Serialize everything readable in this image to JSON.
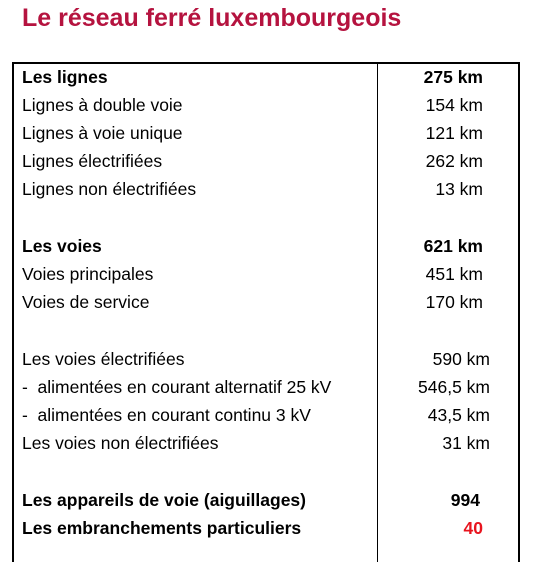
{
  "title": "Le réseau ferré luxembourgeois",
  "table": {
    "rows": [
      [
        "Les lignes",
        "275 km"
      ],
      [
        "Lignes à double voie",
        "154 km"
      ],
      [
        "Lignes à voie unique",
        "121 km"
      ],
      [
        "Lignes électrifiées",
        "262 km"
      ],
      [
        "Lignes non électrifiées",
        "13 km"
      ],
      [
        "Les voies",
        "621 km"
      ],
      [
        "Voies principales",
        "451 km"
      ],
      [
        "Voies de service",
        "170 km"
      ],
      [
        "Les voies électrifiées",
        "590 km"
      ],
      [
        "-  alimentées en courant alternatif 25 kV",
        "546,5 km"
      ],
      [
        "-  alimentées en courant continu 3 kV",
        "43,5 km"
      ],
      [
        "Les voies non électrifiées",
        "31 km"
      ],
      [
        "Les appareils de voie (aiguillages)",
        "994"
      ],
      [
        "Les embranchements particuliers",
        "40"
      ]
    ]
  }
}
